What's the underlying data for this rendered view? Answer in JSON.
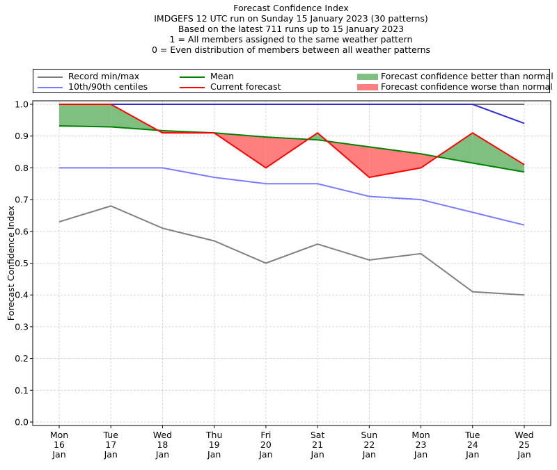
{
  "titles": [
    "Forecast Confidence Index",
    "IMDGEFS 12 UTC run on Sunday 15 January 2023 (30 patterns)",
    "Based on the latest 711 runs up to 15 January 2023",
    "1 = All members assigned to the same weather pattern",
    "0 = Even distribution of members between all weather patterns"
  ],
  "legend": {
    "record": {
      "label": "Record min/max",
      "color": "#808080"
    },
    "centiles": {
      "label": "10th/90th centiles",
      "color": "#7b7bff"
    },
    "mean": {
      "label": "Mean",
      "color": "#008000"
    },
    "current": {
      "label": "Current forecast",
      "color": "#ff0000"
    },
    "better": {
      "label": "Forecast confidence better than normal",
      "color": "#7fbf7f"
    },
    "worse": {
      "label": "Forecast confidence worse than normal",
      "color": "#ff7f7f"
    }
  },
  "chart_data": {
    "type": "line",
    "title": "Forecast Confidence Index",
    "xlabel": "",
    "ylabel": "Forecast Confidence Index",
    "ylim": [
      0.0,
      1.0
    ],
    "yticks": [
      "0.0",
      "0.1",
      "0.2",
      "0.3",
      "0.4",
      "0.5",
      "0.6",
      "0.7",
      "0.8",
      "0.9",
      "1.0"
    ],
    "grid": true,
    "legend_position": "top (above plot)",
    "categories": [
      [
        "Mon",
        "16",
        "Jan"
      ],
      [
        "Tue",
        "17",
        "Jan"
      ],
      [
        "Wed",
        "18",
        "Jan"
      ],
      [
        "Thu",
        "19",
        "Jan"
      ],
      [
        "Fri",
        "20",
        "Jan"
      ],
      [
        "Sat",
        "21",
        "Jan"
      ],
      [
        "Sun",
        "22",
        "Jan"
      ],
      [
        "Mon",
        "23",
        "Jan"
      ],
      [
        "Tue",
        "24",
        "Jan"
      ],
      [
        "Wed",
        "25",
        "Jan"
      ]
    ],
    "series": [
      {
        "name": "Record max",
        "key": "record_max",
        "color": "#808080",
        "values": [
          1.0,
          1.0,
          1.0,
          1.0,
          1.0,
          1.0,
          1.0,
          1.0,
          1.0,
          1.0
        ]
      },
      {
        "name": "Record min",
        "key": "record_min",
        "color": "#808080",
        "values": [
          0.63,
          0.68,
          0.61,
          0.57,
          0.5,
          0.56,
          0.51,
          0.53,
          0.41,
          0.4
        ]
      },
      {
        "name": "90th centile",
        "key": "p90",
        "color": "#7b7bff",
        "values": [
          1.0,
          1.0,
          1.0,
          1.0,
          1.0,
          1.0,
          1.0,
          1.0,
          1.0,
          0.94
        ]
      },
      {
        "name": "10th centile",
        "key": "p10",
        "color": "#7b7bff",
        "values": [
          0.8,
          0.8,
          0.8,
          0.77,
          0.75,
          0.75,
          0.71,
          0.7,
          0.66,
          0.62
        ]
      },
      {
        "name": "Mean",
        "key": "mean",
        "color": "#008000",
        "values": [
          0.932,
          0.929,
          0.917,
          0.91,
          0.897,
          0.888,
          0.866,
          0.844,
          0.815,
          0.787
        ]
      },
      {
        "name": "Current forecast",
        "key": "current",
        "color": "#ff0000",
        "values": [
          1.0,
          1.0,
          0.91,
          0.91,
          0.8,
          0.91,
          0.77,
          0.8,
          0.91,
          0.81
        ]
      }
    ]
  }
}
